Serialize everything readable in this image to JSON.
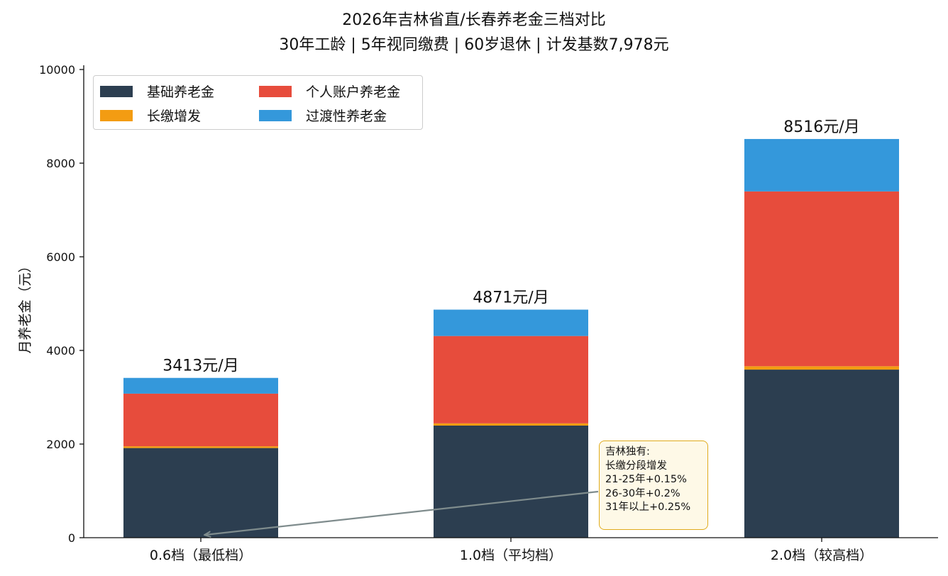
{
  "chart_data": {
    "type": "bar",
    "stacked": true,
    "title": "2026年吉林省直/长春养老金三档对比",
    "subtitle": "30年工龄 | 5年视同缴费 | 60岁退休 | 计发基数7,978元",
    "xlabel": "",
    "ylabel": "月养老金（元）",
    "ylim": [
      0,
      10000
    ],
    "yticks": [
      "0",
      "2000",
      "4000",
      "6000",
      "8000",
      "10000"
    ],
    "categories": [
      "0.6档（最低档）",
      "1.0档（平均档）",
      "2.0档（较高档）"
    ],
    "series": [
      {
        "name": "基础养老金",
        "color": "#2c3e50",
        "values": [
          1915,
          2394,
          3590
        ]
      },
      {
        "name": "长缴增发",
        "color": "#f39c12",
        "values": [
          38,
          48,
          72
        ]
      },
      {
        "name": "个人账户养老金",
        "color": "#e74c3c",
        "values": [
          1124,
          1866,
          3734
        ]
      },
      {
        "name": "过渡性养老金",
        "color": "#3498db",
        "values": [
          336,
          563,
          1120
        ]
      }
    ],
    "totals": [
      3413,
      4871,
      8516
    ],
    "total_labels": [
      "3413元/月",
      "4871元/月",
      "8516元/月"
    ],
    "legend_position": "upper-left",
    "grid": false,
    "annotation": {
      "lines": [
        "吉林独有:",
        "长缴分段增发",
        "21-25年+0.15%",
        "26-30年+0.2%",
        "31年以上+0.25%"
      ],
      "arrow_to_category": "0.6档（最低档）"
    }
  }
}
